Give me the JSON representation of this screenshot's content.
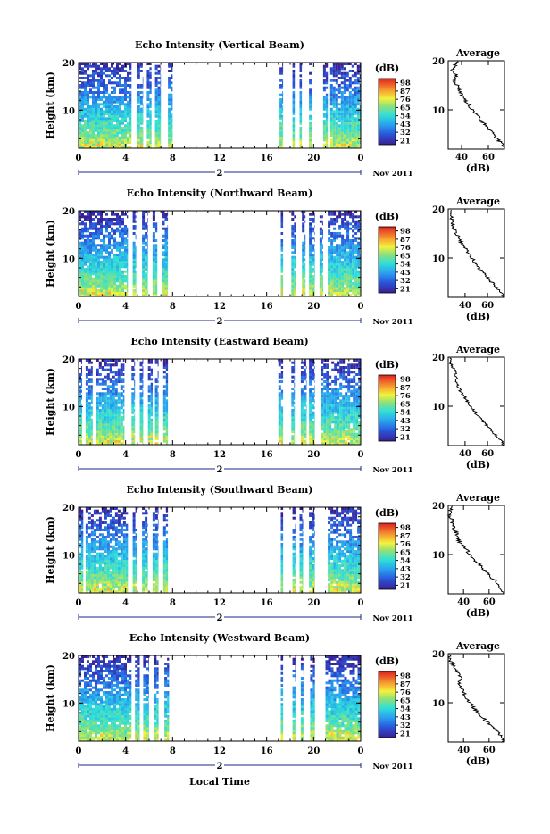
{
  "global": {
    "date_label": "Nov 2011",
    "bottom_xlabel": "Local Time",
    "day_marker": "2"
  },
  "chart_data": [
    {
      "type": "heatmap",
      "title": "Echo Intensity (Vertical Beam)",
      "ylabel": "Height (km)",
      "ylim": [
        2,
        20
      ],
      "xlim": [
        0,
        24
      ],
      "xticks": [
        "0",
        "4",
        "8",
        "12",
        "16",
        "20",
        "0"
      ],
      "yticks": [
        "20",
        "10"
      ],
      "colorbar": {
        "label": "(dB)",
        "ticks": [
          "98",
          "87",
          "76",
          "65",
          "54",
          "43",
          "32",
          "21"
        ]
      },
      "data_intervals_hours": [
        [
          0,
          4.5
        ],
        [
          5,
          5.5
        ],
        [
          5.8,
          6.2
        ],
        [
          6.5,
          7
        ],
        [
          7.6,
          8
        ],
        [
          17.1,
          17.4
        ],
        [
          18.2,
          18.4
        ],
        [
          18.8,
          19
        ],
        [
          19.6,
          19.9
        ],
        [
          20.8,
          21.2
        ],
        [
          21.4,
          24
        ]
      ],
      "profile": {
        "title": "Average",
        "xlabel": "(dB)",
        "xticks": [
          "40",
          "60"
        ],
        "xlim": [
          30,
          72
        ],
        "height_km": [
          2,
          3,
          4,
          5,
          6,
          7,
          8,
          9,
          10,
          11,
          12,
          13,
          14,
          15,
          16,
          17,
          18,
          19,
          20
        ],
        "value_db": [
          72,
          70,
          67,
          64,
          60,
          57,
          54,
          51,
          48,
          45,
          42,
          40,
          38,
          37,
          34,
          36,
          33,
          35,
          37
        ]
      }
    },
    {
      "type": "heatmap",
      "title": "Echo Intensity (Northward Beam)",
      "ylabel": "Height (km)",
      "ylim": [
        2,
        20
      ],
      "xlim": [
        0,
        24
      ],
      "xticks": [
        "0",
        "4",
        "8",
        "12",
        "16",
        "20",
        "0"
      ],
      "yticks": [
        "20",
        "10"
      ],
      "colorbar": {
        "label": "(dB)",
        "ticks": [
          "98",
          "87",
          "76",
          "65",
          "54",
          "43",
          "32",
          "21"
        ]
      },
      "data_intervals_hours": [
        [
          0,
          4.2
        ],
        [
          4.6,
          4.9
        ],
        [
          5.4,
          5.9
        ],
        [
          6.3,
          6.7
        ],
        [
          7.1,
          7.6
        ],
        [
          17.2,
          17.4
        ],
        [
          18.1,
          18.5
        ],
        [
          19,
          19.3
        ],
        [
          19.6,
          20.1
        ],
        [
          20.5,
          20.8
        ],
        [
          21.2,
          24
        ]
      ],
      "profile": {
        "title": "Average",
        "xlabel": "(dB)",
        "xticks": [
          "40",
          "60"
        ],
        "xlim": [
          25,
          75
        ],
        "height_km": [
          2,
          3,
          4,
          5,
          6,
          7,
          8,
          9,
          10,
          11,
          12,
          13,
          14,
          15,
          16,
          17,
          18,
          19,
          20
        ],
        "value_db": [
          74,
          72,
          68,
          64,
          60,
          56,
          52,
          49,
          46,
          43,
          40,
          37,
          35,
          32,
          30,
          29,
          28,
          27,
          28
        ]
      }
    },
    {
      "type": "heatmap",
      "title": "Echo Intensity (Eastward Beam)",
      "ylabel": "Height (km)",
      "ylim": [
        2,
        20
      ],
      "xlim": [
        0,
        24
      ],
      "xticks": [
        "0",
        "4",
        "8",
        "12",
        "16",
        "20",
        "0"
      ],
      "yticks": [
        "20",
        "10"
      ],
      "colorbar": {
        "label": "(dB)",
        "ticks": [
          "98",
          "87",
          "76",
          "65",
          "54",
          "43",
          "32",
          "21"
        ]
      },
      "data_intervals_hours": [
        [
          0,
          0.3
        ],
        [
          0.6,
          1.2
        ],
        [
          1.5,
          3.9
        ],
        [
          4.5,
          4.8
        ],
        [
          5.2,
          5.5
        ],
        [
          5.9,
          6.3
        ],
        [
          6.5,
          6.8
        ],
        [
          7.2,
          7.6
        ],
        [
          17,
          17.4
        ],
        [
          18.1,
          18.4
        ],
        [
          18.9,
          19.4
        ],
        [
          19.6,
          20.1
        ],
        [
          20.6,
          24
        ]
      ],
      "profile": {
        "title": "Average",
        "xlabel": "(dB)",
        "xticks": [
          "40",
          "60"
        ],
        "xlim": [
          25,
          75
        ],
        "height_km": [
          2,
          3,
          4,
          5,
          6,
          7,
          8,
          9,
          10,
          11,
          12,
          13,
          14,
          15,
          16,
          17,
          18,
          19,
          20
        ],
        "value_db": [
          74,
          72,
          68,
          64,
          60,
          56,
          52,
          48,
          45,
          42,
          39,
          36,
          34,
          32,
          32,
          31,
          29,
          27,
          28
        ]
      }
    },
    {
      "type": "heatmap",
      "title": "Echo Intensity (Southward Beam)",
      "ylabel": "Height (km)",
      "ylim": [
        2,
        20
      ],
      "xlim": [
        0,
        24
      ],
      "xticks": [
        "0",
        "4",
        "8",
        "12",
        "16",
        "20",
        "0"
      ],
      "yticks": [
        "20",
        "10"
      ],
      "colorbar": {
        "label": "(dB)",
        "ticks": [
          "98",
          "87",
          "76",
          "65",
          "54",
          "43",
          "32",
          "21"
        ]
      },
      "data_intervals_hours": [
        [
          0,
          0.4
        ],
        [
          0.6,
          4.2
        ],
        [
          4.6,
          5
        ],
        [
          5.4,
          5.9
        ],
        [
          6.3,
          6.8
        ],
        [
          7.2,
          7.6
        ],
        [
          17.2,
          17.4
        ],
        [
          18.2,
          18.5
        ],
        [
          18.8,
          19.1
        ],
        [
          19.6,
          20.1
        ],
        [
          21.2,
          24
        ]
      ],
      "profile": {
        "title": "Average",
        "xlabel": "(dB)",
        "xticks": [
          "40",
          "60"
        ],
        "xlim": [
          28,
          72
        ],
        "height_km": [
          2,
          3,
          4,
          5,
          6,
          7,
          8,
          9,
          10,
          11,
          12,
          13,
          14,
          15,
          16,
          17,
          18,
          19,
          20
        ],
        "value_db": [
          72,
          70,
          67,
          63,
          60,
          56,
          52,
          48,
          45,
          42,
          38,
          36,
          35,
          33,
          32,
          31,
          29,
          30,
          31
        ]
      }
    },
    {
      "type": "heatmap",
      "title": "Echo Intensity (Westward Beam)",
      "ylabel": "Height (km)",
      "ylim": [
        2,
        20
      ],
      "xlim": [
        0,
        24
      ],
      "xticks": [
        "0",
        "4",
        "8",
        "12",
        "16",
        "20",
        "0"
      ],
      "yticks": [
        "20",
        "10"
      ],
      "colorbar": {
        "label": "(dB)",
        "ticks": [
          "98",
          "87",
          "76",
          "65",
          "54",
          "43",
          "32",
          "21"
        ]
      },
      "data_intervals_hours": [
        [
          0,
          4.5
        ],
        [
          4.8,
          5.2
        ],
        [
          5.5,
          6
        ],
        [
          6.4,
          6.8
        ],
        [
          7.3,
          7.7
        ],
        [
          17.2,
          17.4
        ],
        [
          18.2,
          18.5
        ],
        [
          18.9,
          19.2
        ],
        [
          19.7,
          20.1
        ],
        [
          21,
          24
        ]
      ],
      "profile": {
        "title": "Average",
        "xlabel": "(dB)",
        "xticks": [
          "40",
          "60"
        ],
        "xlim": [
          28,
          72
        ],
        "height_km": [
          2,
          3,
          4,
          5,
          6,
          7,
          8,
          9,
          10,
          11,
          12,
          13,
          14,
          15,
          16,
          17,
          18,
          19,
          20
        ],
        "value_db": [
          72,
          70,
          67,
          63,
          59,
          55,
          51,
          48,
          45,
          42,
          40,
          38,
          36,
          38,
          36,
          33,
          31,
          29,
          30
        ]
      }
    }
  ]
}
